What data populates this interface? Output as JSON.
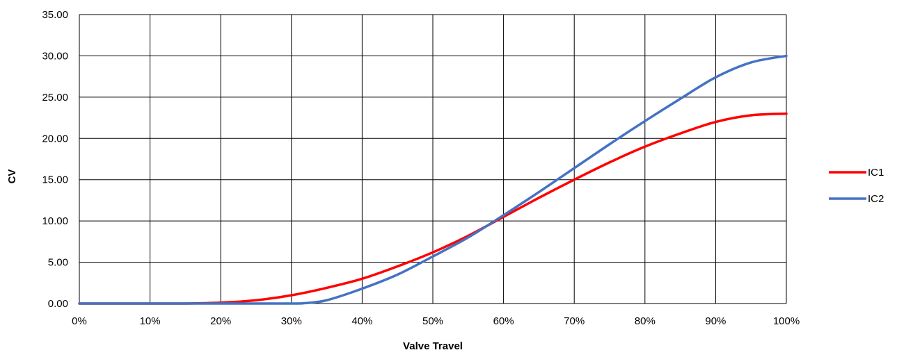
{
  "chart_data": {
    "type": "line",
    "title": "",
    "xlabel": "Valve Travel",
    "ylabel": "CV",
    "xlim": [
      0,
      100
    ],
    "ylim": [
      0,
      35
    ],
    "x_ticks": [
      0,
      10,
      20,
      30,
      40,
      50,
      60,
      70,
      80,
      90,
      100
    ],
    "x_tick_labels": [
      "0%",
      "10%",
      "20%",
      "30%",
      "40%",
      "50%",
      "60%",
      "70%",
      "80%",
      "90%",
      "100%"
    ],
    "y_ticks": [
      0,
      5,
      10,
      15,
      20,
      25,
      30,
      35
    ],
    "y_tick_labels": [
      "0.00",
      "5.00",
      "10.00",
      "15.00",
      "20.00",
      "25.00",
      "30.00",
      "35.00"
    ],
    "grid": true,
    "legend_position": "right",
    "series": [
      {
        "name": "IC1",
        "color": "#ff0000",
        "x": [
          0,
          10,
          15,
          20,
          25,
          30,
          35,
          40,
          45,
          50,
          55,
          60,
          65,
          70,
          75,
          80,
          85,
          90,
          95,
          100
        ],
        "y": [
          0,
          0,
          0,
          0.1,
          0.4,
          1.0,
          1.9,
          3.0,
          4.5,
          6.2,
          8.2,
          10.5,
          12.8,
          15.0,
          17.1,
          19.0,
          20.6,
          22.0,
          22.8,
          23.0
        ]
      },
      {
        "name": "IC2",
        "color": "#4472c4",
        "x": [
          0,
          10,
          20,
          30,
          32,
          35,
          40,
          45,
          50,
          55,
          60,
          65,
          70,
          75,
          80,
          85,
          90,
          95,
          100
        ],
        "y": [
          0,
          0,
          0,
          0,
          0.05,
          0.4,
          1.8,
          3.5,
          5.7,
          8.0,
          10.7,
          13.5,
          16.4,
          19.3,
          22.1,
          24.8,
          27.4,
          29.2,
          30.0
        ]
      }
    ]
  }
}
